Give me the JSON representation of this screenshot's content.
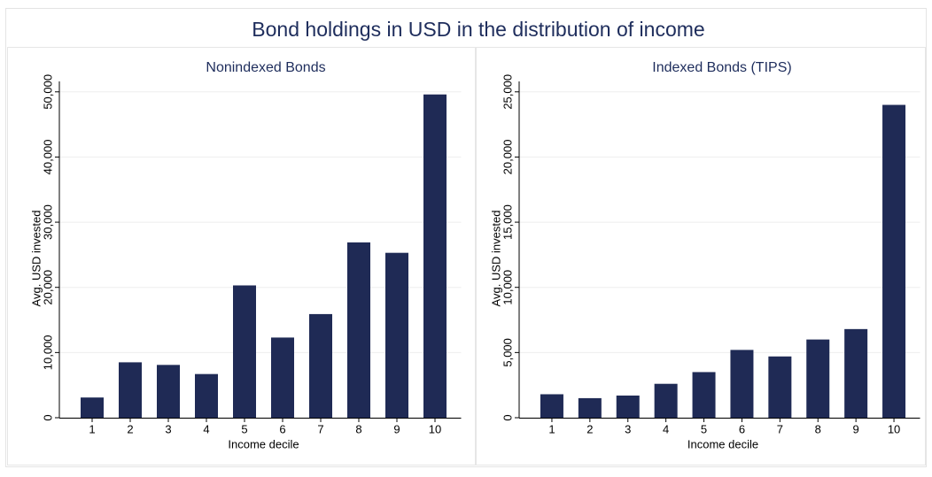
{
  "title": "Bond holdings in USD in the distribution of income",
  "chart_data": [
    {
      "type": "bar",
      "title": "Nonindexed Bonds",
      "xlabel": "Income decile",
      "ylabel": "Avg. USD invested",
      "categories": [
        "1",
        "2",
        "3",
        "4",
        "5",
        "6",
        "7",
        "8",
        "9",
        "10"
      ],
      "values": [
        3100,
        8500,
        8100,
        6700,
        20300,
        12300,
        15900,
        26900,
        25300,
        49600
      ],
      "color": "#1f2a55",
      "ylim": [
        0,
        51600
      ],
      "yticks": [
        0,
        {
          "value": 10000,
          "label": "10,000"
        },
        {
          "value": 20000,
          "label": "20,000"
        },
        {
          "value": 30000,
          "label": "30,000"
        },
        {
          "value": 40000,
          "label": "40,000"
        },
        {
          "value": 50000,
          "label": "50,000"
        }
      ],
      "grid": true
    },
    {
      "type": "bar",
      "title": "Indexed Bonds (TIPS)",
      "xlabel": "Income decile",
      "ylabel": "Avg. USD invested",
      "categories": [
        "1",
        "2",
        "3",
        "4",
        "5",
        "6",
        "7",
        "8",
        "9",
        "10"
      ],
      "values": [
        1800,
        1500,
        1700,
        2600,
        3500,
        5200,
        4700,
        6000,
        6800,
        24000
      ],
      "color": "#1f2a55",
      "ylim": [
        0,
        25800
      ],
      "yticks": [
        0,
        {
          "value": 5000,
          "label": "5,000"
        },
        {
          "value": 10000,
          "label": "10,000"
        },
        {
          "value": 15000,
          "label": "15,000"
        },
        {
          "value": 20000,
          "label": "20,000"
        },
        {
          "value": 25000,
          "label": "25,000"
        }
      ],
      "grid": true
    }
  ]
}
